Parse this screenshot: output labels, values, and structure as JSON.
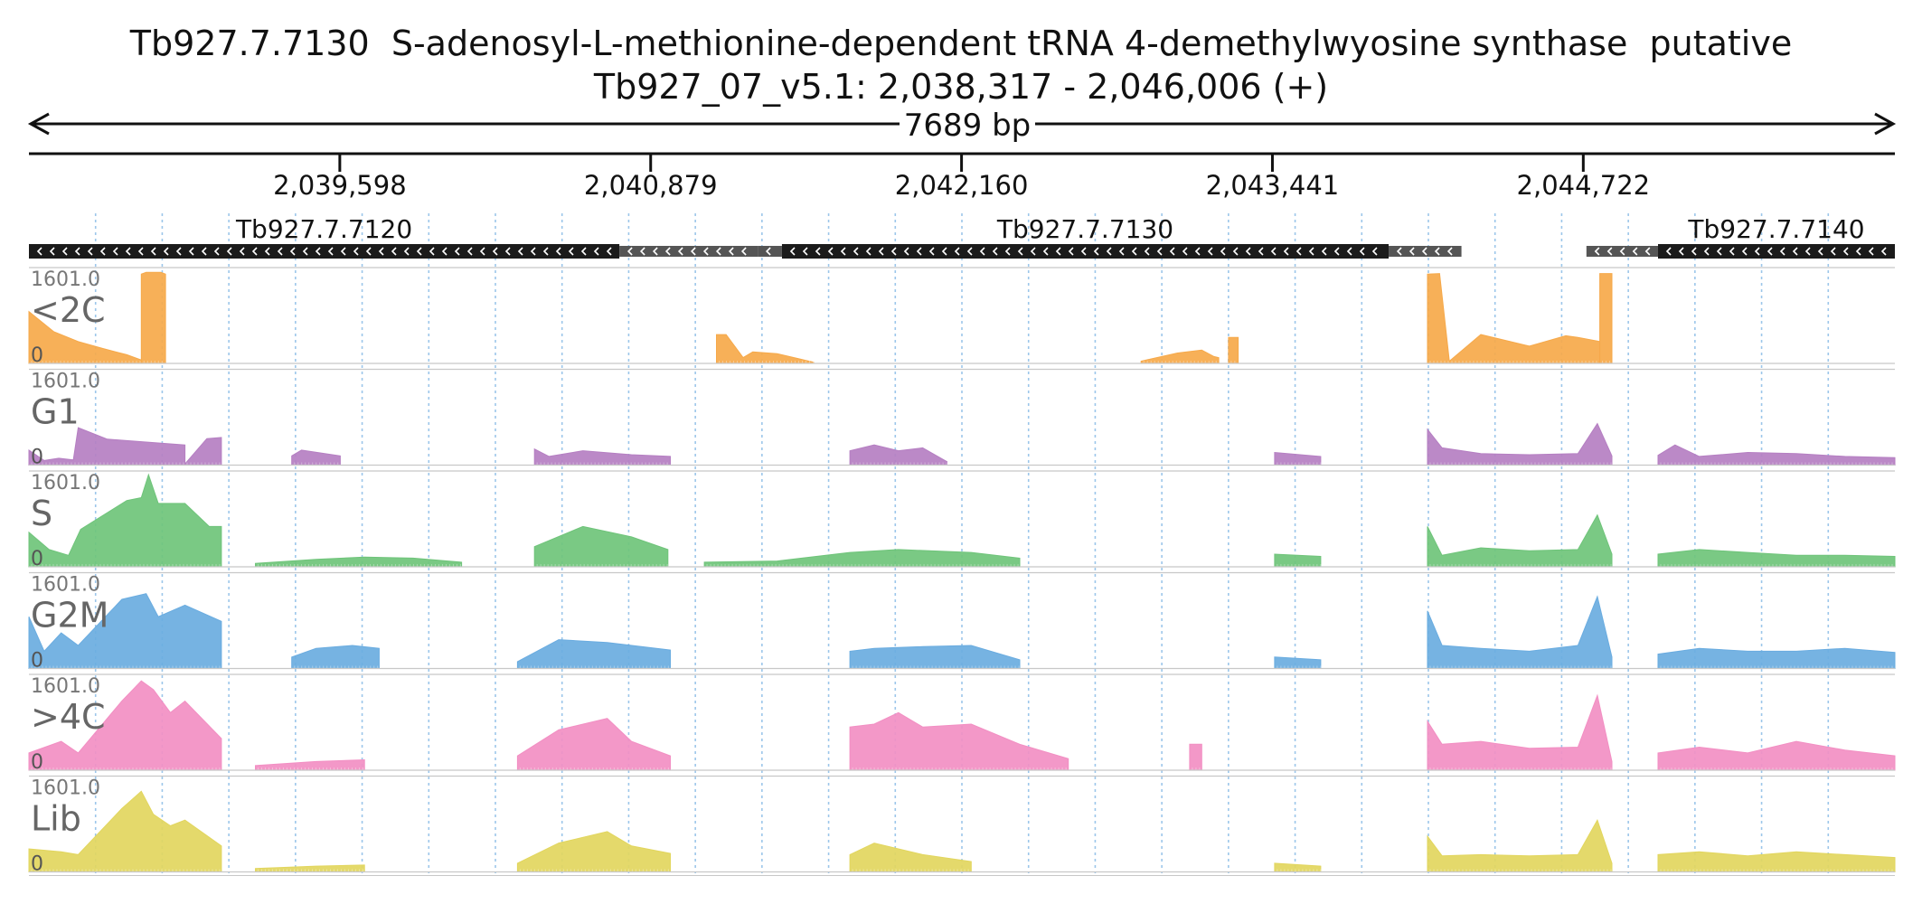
{
  "title": {
    "line1": "Tb927.7.7130  S-adenosyl-L-methionine-dependent tRNA 4-demethylwyosine synthase  putative",
    "line2": "Tb927_07_v5.1: 2,038,317 - 2,046,006 (+)"
  },
  "scale_label": "7689 bp",
  "chart_data": {
    "type": "area",
    "region": {
      "chrom": "Tb927_07_v5.1",
      "start": 2038317,
      "end": 2046006,
      "strand": "+"
    },
    "x_ticks": [
      {
        "pos": 2039598,
        "label": "2,039,598"
      },
      {
        "pos": 2040879,
        "label": "2,040,879"
      },
      {
        "pos": 2042160,
        "label": "2,042,160"
      },
      {
        "pos": 2043441,
        "label": "2,043,441"
      },
      {
        "pos": 2044722,
        "label": "2,044,722"
      }
    ],
    "genes": [
      {
        "name": "Tb927.7.7120",
        "strand": "-",
        "cds": [
          2038317,
          2040750
        ],
        "utr": [
          2040750,
          2041320
        ]
      },
      {
        "name": "Tb927.7.7130",
        "strand": "-",
        "cds": [
          2041420,
          2043920
        ],
        "utr_left": [
          2041320,
          2041420
        ],
        "utr": [
          2043920,
          2044220
        ]
      },
      {
        "name": "Tb927.7.7140",
        "strand": "-",
        "cds": [
          2045030,
          2046006
        ],
        "utr": [
          2044735,
          2045030
        ]
      }
    ],
    "ylim": [
      0,
      1601.0
    ],
    "y_max_label": "1601.0",
    "y_min_label": "0",
    "tracks": [
      {
        "name": "<2C",
        "color": "#f6a94a",
        "segments": [
          {
            "x": [
              2038317,
              2038420,
              2038520,
              2038620,
              2038720,
              2038780
            ],
            "y": [
              900,
              550,
              380,
              260,
              150,
              60
            ]
          },
          {
            "x": [
              2038780,
              2038800,
              2038860,
              2038880
            ],
            "y": [
              1550,
              1580,
              1580,
              1550
            ]
          },
          {
            "x": [
              2041150,
              2041190,
              2041260,
              2041300,
              2041400,
              2041500,
              2041550
            ],
            "y": [
              500,
              500,
              100,
              200,
              170,
              70,
              20
            ]
          },
          {
            "x": [
              2042900,
              2043050,
              2043150,
              2043200,
              2043220
            ],
            "y": [
              40,
              180,
              230,
              120,
              100
            ]
          },
          {
            "x": [
              2043260,
              2043300
            ],
            "y": [
              450,
              450
            ]
          },
          {
            "x": [
              2044080,
              2044130,
              2044170,
              2044300,
              2044500,
              2044650,
              2044700,
              2044790
            ],
            "y": [
              1550,
              1560,
              40,
              500,
              300,
              480,
              450,
              380
            ]
          },
          {
            "x": [
              2044790,
              2044840
            ],
            "y": [
              1560,
              1560
            ]
          }
        ]
      },
      {
        "name": "G1",
        "color": "#b57fc2",
        "segments": [
          {
            "x": [
              2038317,
              2038380,
              2038440,
              2038500,
              2038520,
              2038640,
              2038800,
              2038960,
              2038960,
              2039050,
              2039110
            ],
            "y": [
              260,
              80,
              120,
              90,
              650,
              450,
              400,
              350,
              20,
              460,
              480
            ]
          },
          {
            "x": [
              2039400,
              2039440,
              2039600
            ],
            "y": [
              160,
              260,
              160
            ]
          },
          {
            "x": [
              2040400,
              2040460,
              2040600,
              2040800,
              2040960
            ],
            "y": [
              280,
              150,
              250,
              180,
              150
            ]
          },
          {
            "x": [
              2041700,
              2041800,
              2041900,
              2042000,
              2042100
            ],
            "y": [
              250,
              350,
              250,
              300,
              60
            ]
          },
          {
            "x": [
              2043450,
              2043640
            ],
            "y": [
              220,
              150
            ]
          },
          {
            "x": [
              2044080,
              2044140,
              2044300,
              2044500,
              2044700,
              2044780,
              2044840
            ],
            "y": [
              620,
              300,
              200,
              180,
              200,
              720,
              160
            ]
          },
          {
            "x": [
              2045030,
              2045100,
              2045200,
              2045400,
              2045600,
              2045800,
              2046006
            ],
            "y": [
              170,
              350,
              150,
              220,
              200,
              150,
              130
            ]
          }
        ]
      },
      {
        "name": "S",
        "color": "#6fc47a",
        "segments": [
          {
            "x": [
              2038317,
              2038400,
              2038480,
              2038530,
              2038720,
              2038780,
              2038810,
              2038850,
              2038900,
              2038960,
              2039060,
              2039110
            ],
            "y": [
              600,
              300,
              200,
              650,
              1150,
              1200,
              1600,
              1100,
              1100,
              1100,
              700,
              700
            ]
          },
          {
            "x": [
              2039250,
              2039500,
              2039700,
              2039900,
              2040100
            ],
            "y": [
              60,
              130,
              170,
              150,
              80
            ]
          },
          {
            "x": [
              2040400,
              2040600,
              2040800,
              2040950
            ],
            "y": [
              350,
              700,
              520,
              300
            ]
          },
          {
            "x": [
              2041100,
              2041400,
              2041700,
              2041900,
              2042200,
              2042400
            ],
            "y": [
              80,
              100,
              250,
              300,
              250,
              150
            ]
          },
          {
            "x": [
              2043450,
              2043640
            ],
            "y": [
              220,
              180
            ]
          },
          {
            "x": [
              2044080,
              2044140,
              2044300,
              2044500,
              2044700,
              2044780,
              2044840
            ],
            "y": [
              700,
              200,
              330,
              280,
              300,
              900,
              220
            ]
          },
          {
            "x": [
              2045030,
              2045200,
              2045400,
              2045600,
              2045800,
              2046006
            ],
            "y": [
              220,
              300,
              250,
              200,
              200,
              180
            ]
          }
        ]
      },
      {
        "name": "G2M",
        "color": "#6aace0",
        "segments": [
          {
            "x": [
              2038317,
              2038380,
              2038450,
              2038520,
              2038700,
              2038800,
              2038850,
              2038960,
              2039110
            ],
            "y": [
              900,
              300,
              620,
              400,
              1200,
              1300,
              900,
              1100,
              820
            ]
          },
          {
            "x": [
              2039400,
              2039500,
              2039650,
              2039760
            ],
            "y": [
              200,
              350,
              400,
              350
            ]
          },
          {
            "x": [
              2040330,
              2040500,
              2040700,
              2040960
            ],
            "y": [
              120,
              500,
              450,
              320
            ]
          },
          {
            "x": [
              2041700,
              2041800,
              2042000,
              2042200,
              2042400
            ],
            "y": [
              300,
              350,
              380,
              400,
              150
            ]
          },
          {
            "x": [
              2043450,
              2043640
            ],
            "y": [
              200,
              150
            ]
          },
          {
            "x": [
              2044080,
              2044140,
              2044300,
              2044500,
              2044700,
              2044780,
              2044840
            ],
            "y": [
              1000,
              400,
              350,
              300,
              400,
              1250,
              200
            ]
          },
          {
            "x": [
              2045030,
              2045200,
              2045400,
              2045600,
              2045800,
              2046006
            ],
            "y": [
              250,
              350,
              300,
              300,
              350,
              280
            ]
          }
        ]
      },
      {
        "name": ">4C",
        "color": "#f28fc3",
        "segments": [
          {
            "x": [
              2038317,
              2038450,
              2038520,
              2038700,
              2038780,
              2038830,
              2038900,
              2038960,
              2039110
            ],
            "y": [
              300,
              500,
              300,
              1200,
              1550,
              1400,
              1000,
              1200,
              550
            ]
          },
          {
            "x": [
              2039250,
              2039500,
              2039700
            ],
            "y": [
              80,
              150,
              180
            ]
          },
          {
            "x": [
              2040330,
              2040500,
              2040700,
              2040800,
              2040960
            ],
            "y": [
              250,
              700,
              900,
              500,
              250
            ]
          },
          {
            "x": [
              2041700,
              2041800,
              2041900,
              2042000,
              2042200,
              2042400,
              2042600
            ],
            "y": [
              750,
              800,
              1000,
              750,
              800,
              450,
              200
            ]
          },
          {
            "x": [
              2043100,
              2043150
            ],
            "y": [
              450,
              450
            ]
          },
          {
            "x": [
              2044080,
              2044140,
              2044300,
              2044500,
              2044700,
              2044780,
              2044840
            ],
            "y": [
              850,
              450,
              500,
              380,
              400,
              1300,
              150
            ]
          },
          {
            "x": [
              2045030,
              2045200,
              2045400,
              2045600,
              2045800,
              2046006
            ],
            "y": [
              300,
              400,
              300,
              500,
              350,
              250
            ]
          }
        ]
      },
      {
        "name": "Lib",
        "color": "#e2d65e",
        "segments": [
          {
            "x": [
              2038317,
              2038450,
              2038520,
              2038700,
              2038780,
              2038830,
              2038900,
              2038960,
              2039110
            ],
            "y": [
              400,
              350,
              300,
              1100,
              1400,
              1000,
              800,
              900,
              450
            ]
          },
          {
            "x": [
              2039250,
              2039500,
              2039700
            ],
            "y": [
              60,
              100,
              120
            ]
          },
          {
            "x": [
              2040330,
              2040500,
              2040700,
              2040800,
              2040960
            ],
            "y": [
              150,
              500,
              700,
              450,
              320
            ]
          },
          {
            "x": [
              2041700,
              2041800,
              2042000,
              2042200
            ],
            "y": [
              300,
              500,
              300,
              180
            ]
          },
          {
            "x": [
              2043450,
              2043640
            ],
            "y": [
              150,
              100
            ]
          },
          {
            "x": [
              2044080,
              2044140,
              2044300,
              2044500,
              2044700,
              2044780,
              2044840
            ],
            "y": [
              620,
              280,
              300,
              280,
              300,
              900,
              150
            ]
          },
          {
            "x": [
              2045030,
              2045200,
              2045400,
              2045600,
              2045800,
              2046006
            ],
            "y": [
              300,
              350,
              280,
              350,
              300,
              250
            ]
          }
        ]
      }
    ]
  }
}
